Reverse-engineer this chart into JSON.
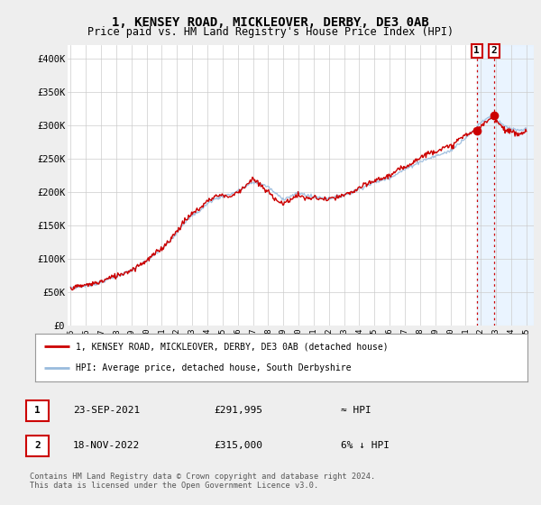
{
  "title": "1, KENSEY ROAD, MICKLEOVER, DERBY, DE3 0AB",
  "subtitle": "Price paid vs. HM Land Registry's House Price Index (HPI)",
  "title_fontsize": 10,
  "subtitle_fontsize": 8.5,
  "ylabel_ticks": [
    "£0",
    "£50K",
    "£100K",
    "£150K",
    "£200K",
    "£250K",
    "£300K",
    "£350K",
    "£400K"
  ],
  "ytick_values": [
    0,
    50000,
    100000,
    150000,
    200000,
    250000,
    300000,
    350000,
    400000
  ],
  "ylim": [
    0,
    420000
  ],
  "xlim_start": 1994.8,
  "xlim_end": 2025.5,
  "xtick_years": [
    1995,
    1996,
    1997,
    1998,
    1999,
    2000,
    2001,
    2002,
    2003,
    2004,
    2005,
    2006,
    2007,
    2008,
    2009,
    2010,
    2011,
    2012,
    2013,
    2014,
    2015,
    2016,
    2017,
    2018,
    2019,
    2020,
    2021,
    2022,
    2023,
    2024,
    2025
  ],
  "line1_color": "#cc0000",
  "line2_color": "#99bbdd",
  "marker_color": "#cc0000",
  "sale1_x": 2021.73,
  "sale1_y": 291995,
  "sale2_x": 2022.88,
  "sale2_y": 315000,
  "vline_color": "#cc0000",
  "shade_color": "#ddeeff",
  "legend_label1": "1, KENSEY ROAD, MICKLEOVER, DERBY, DE3 0AB (detached house)",
  "legend_label2": "HPI: Average price, detached house, South Derbyshire",
  "table_row1_date": "23-SEP-2021",
  "table_row1_price": "£291,995",
  "table_row1_hpi": "≈ HPI",
  "table_row2_date": "18-NOV-2022",
  "table_row2_price": "£315,000",
  "table_row2_hpi": "6% ↓ HPI",
  "footnote": "Contains HM Land Registry data © Crown copyright and database right 2024.\nThis data is licensed under the Open Government Licence v3.0.",
  "bg_color": "#eeeeee",
  "plot_bg_color": "#ffffff",
  "grid_color": "#cccccc"
}
